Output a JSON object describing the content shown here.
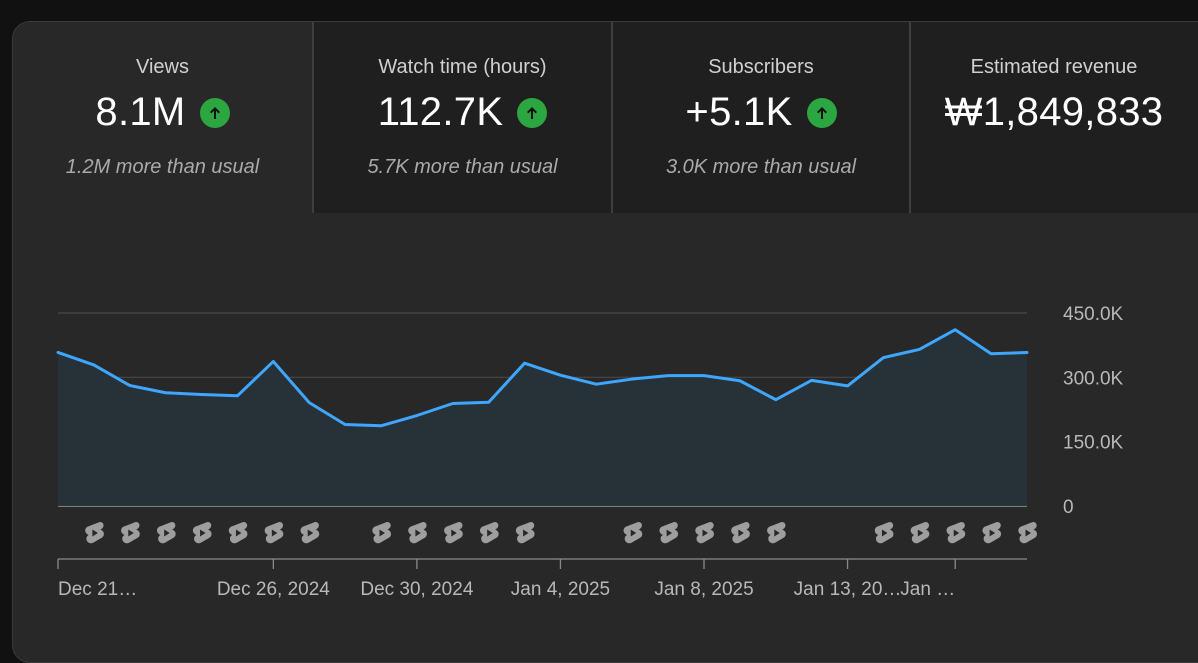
{
  "metrics": [
    {
      "label": "Views",
      "value": "8.1M",
      "trend": "up",
      "sub": "1.2M more than usual"
    },
    {
      "label": "Watch time (hours)",
      "value": "112.7K",
      "trend": "up",
      "sub": "5.7K more than usual"
    },
    {
      "label": "Subscribers",
      "value": "+5.1K",
      "trend": "up",
      "sub": "3.0K more than usual"
    },
    {
      "label": "Estimated revenue",
      "value": "₩1,849,833",
      "trend": "none",
      "sub": ""
    }
  ],
  "colors": {
    "line": "#3ea6ff",
    "area": "#263239",
    "trend_up": "#2ba640",
    "shorts_icon": "#9e9e9e"
  },
  "icons": {
    "trend": "arrow-up-icon",
    "marker": "shorts-icon"
  },
  "chart_data": {
    "type": "area",
    "y_ticks": [
      "450.0K",
      "300.0K",
      "150.0K",
      "0"
    ],
    "ylim": [
      0,
      450000
    ],
    "grid": true,
    "x_tick_labels": [
      "Dec 21…",
      "Dec 26, 2024",
      "Dec 30, 2024",
      "Jan 4, 2025",
      "Jan 8, 2025",
      "Jan 13, 20…",
      "Jan …"
    ],
    "x_tick_indices": [
      0,
      6,
      10,
      14,
      18,
      22,
      25
    ],
    "series": [
      {
        "values": [
          358000,
          329000,
          281000,
          264000,
          260000,
          257000,
          337000,
          241000,
          190000,
          187000,
          211000,
          239000,
          242000,
          333000,
          305000,
          284000,
          296000,
          304000,
          304000,
          292000,
          248000,
          293000,
          280000,
          346000,
          365000,
          411000,
          355000,
          358000
        ]
      }
    ],
    "marker_indices": [
      1,
      2,
      3,
      4,
      5,
      6,
      7,
      9,
      10,
      11,
      12,
      13,
      16,
      17,
      18,
      19,
      20,
      23,
      24,
      25,
      26,
      27
    ]
  }
}
